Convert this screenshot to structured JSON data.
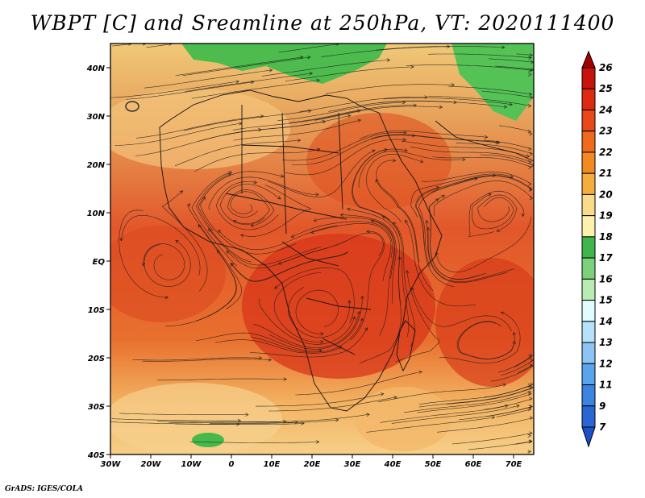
{
  "title": "WBPT [C] and Sreamline at 250hPa, VT: 2020111400",
  "footer": "GrADS: IGES/COLA",
  "map": {
    "lon_range": [
      -30,
      75
    ],
    "lat_range": [
      -40,
      45
    ],
    "x_ticks": [
      "30W",
      "20W",
      "10W",
      "0",
      "10E",
      "20E",
      "30E",
      "40E",
      "50E",
      "60E",
      "70E"
    ],
    "x_tick_values": [
      -30,
      -20,
      -10,
      0,
      10,
      20,
      30,
      40,
      50,
      60,
      70
    ],
    "y_ticks": [
      "40N",
      "30N",
      "20N",
      "10N",
      "EQ",
      "10S",
      "20S",
      "30S",
      "40S"
    ],
    "y_tick_values": [
      40,
      30,
      20,
      10,
      0,
      -10,
      -20,
      -30,
      -40
    ]
  },
  "colorbar": {
    "levels": [
      "26",
      "25",
      "24",
      "23",
      "22",
      "21",
      "20",
      "19",
      "18",
      "17",
      "16",
      "15",
      "14",
      "13",
      "12",
      "11",
      "9",
      "7"
    ],
    "colors": [
      "#a50000",
      "#c8120c",
      "#dd2a12",
      "#e8481a",
      "#f06a1e",
      "#f28a24",
      "#f5ad3e",
      "#f9dc8a",
      "#fdf2ab",
      "#3fb54a",
      "#7cd27a",
      "#b8ecb2",
      "#e2fbfc",
      "#b7e0fa",
      "#8cc5f5",
      "#5aa4ec",
      "#3a85e0",
      "#2a66d2",
      "#1c50c8"
    ]
  }
}
